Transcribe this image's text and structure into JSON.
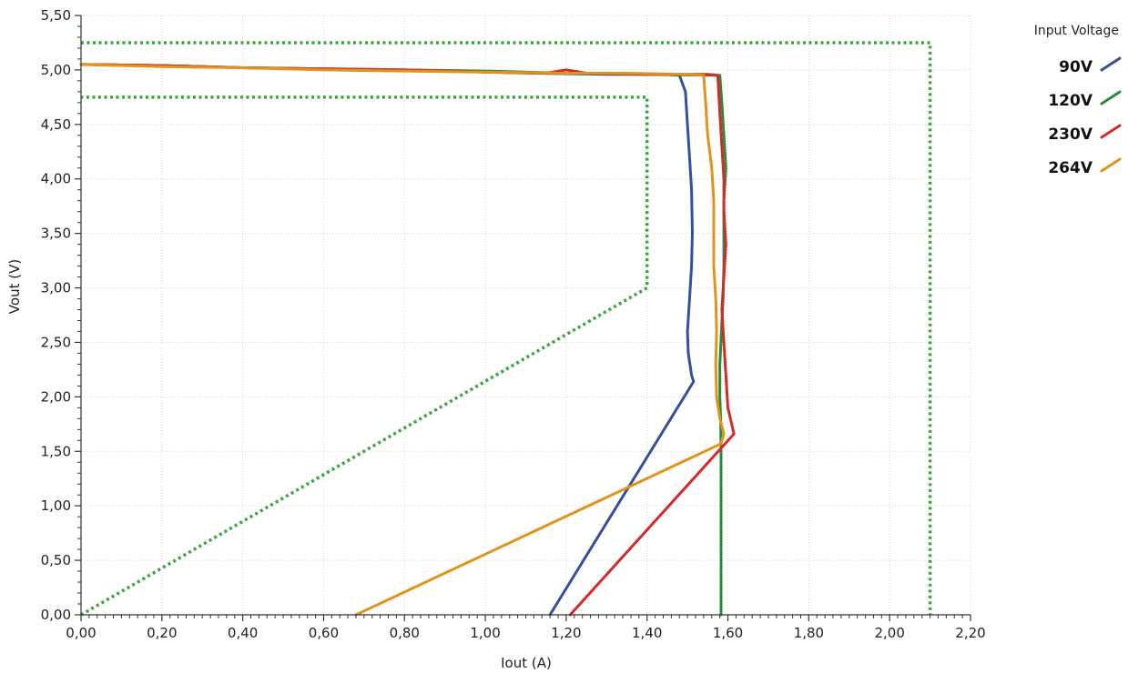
{
  "chart_data": {
    "type": "line",
    "xlabel": "Iout (A)",
    "ylabel": "Vout (V)",
    "xlim": [
      0,
      2.2
    ],
    "ylim": [
      0,
      5.5
    ],
    "x_ticks": [
      "0,00",
      "0,20",
      "0,40",
      "0,60",
      "0,80",
      "1,00",
      "1,20",
      "1,40",
      "1,60",
      "1,80",
      "2,00",
      "2,20"
    ],
    "y_ticks": [
      "0,00",
      "0,50",
      "1,00",
      "1,50",
      "2,00",
      "2,50",
      "3,00",
      "3,50",
      "4,00",
      "4,50",
      "5,00",
      "5,50"
    ],
    "grid": true,
    "legend": {
      "title": "Input Voltage",
      "position": "top-right"
    },
    "limits": [
      {
        "style": "dotted",
        "color": "#3aa63a",
        "points": [
          [
            0.0,
            0.0
          ],
          [
            1.4,
            3.0
          ],
          [
            1.4,
            4.75
          ],
          [
            0.0,
            4.75
          ]
        ]
      },
      {
        "style": "dotted",
        "color": "#3aa63a",
        "points": [
          [
            0.0,
            5.25
          ],
          [
            2.1,
            5.25
          ],
          [
            2.1,
            0.0
          ]
        ]
      }
    ],
    "series": [
      {
        "name": "90V",
        "color": "#34509a",
        "points": [
          [
            0.0,
            5.05
          ],
          [
            0.2,
            5.04
          ],
          [
            0.4,
            5.02
          ],
          [
            0.6,
            5.01
          ],
          [
            0.8,
            5.0
          ],
          [
            1.0,
            4.98
          ],
          [
            1.12,
            4.97
          ],
          [
            1.3,
            4.96
          ],
          [
            1.45,
            4.96
          ],
          [
            1.48,
            4.95
          ],
          [
            1.495,
            4.8
          ],
          [
            1.5,
            4.5
          ],
          [
            1.505,
            4.2
          ],
          [
            1.51,
            3.9
          ],
          [
            1.512,
            3.5
          ],
          [
            1.51,
            3.2
          ],
          [
            1.505,
            2.9
          ],
          [
            1.5,
            2.6
          ],
          [
            1.502,
            2.4
          ],
          [
            1.51,
            2.2
          ],
          [
            1.515,
            2.14
          ],
          [
            1.16,
            0.0
          ]
        ]
      },
      {
        "name": "120V",
        "color": "#2b8a3e",
        "points": [
          [
            0.0,
            5.05
          ],
          [
            0.2,
            5.04
          ],
          [
            0.4,
            5.02
          ],
          [
            0.6,
            5.01
          ],
          [
            0.8,
            5.0
          ],
          [
            1.0,
            4.99
          ],
          [
            1.2,
            4.97
          ],
          [
            1.4,
            4.96
          ],
          [
            1.58,
            4.95
          ],
          [
            1.585,
            4.7
          ],
          [
            1.59,
            4.4
          ],
          [
            1.595,
            4.1
          ],
          [
            1.59,
            3.8
          ],
          [
            1.59,
            3.5
          ],
          [
            1.59,
            3.2
          ],
          [
            1.588,
            2.9
          ],
          [
            1.584,
            2.6
          ],
          [
            1.58,
            2.3
          ],
          [
            1.58,
            2.0
          ],
          [
            1.582,
            1.8
          ],
          [
            1.583,
            1.5
          ],
          [
            1.583,
            1.0
          ],
          [
            1.583,
            0.5
          ],
          [
            1.583,
            0.0
          ]
        ]
      },
      {
        "name": "230V",
        "color": "#d42a2a",
        "points": [
          [
            0.0,
            5.05
          ],
          [
            0.2,
            5.04
          ],
          [
            0.4,
            5.02
          ],
          [
            0.6,
            5.01
          ],
          [
            0.8,
            5.0
          ],
          [
            1.0,
            4.98
          ],
          [
            1.15,
            4.97
          ],
          [
            1.2,
            5.0
          ],
          [
            1.25,
            4.97
          ],
          [
            1.4,
            4.96
          ],
          [
            1.55,
            4.96
          ],
          [
            1.575,
            4.95
          ],
          [
            1.58,
            4.6
          ],
          [
            1.585,
            4.3
          ],
          [
            1.59,
            4.0
          ],
          [
            1.59,
            3.7
          ],
          [
            1.595,
            3.4
          ],
          [
            1.59,
            3.1
          ],
          [
            1.585,
            2.8
          ],
          [
            1.59,
            2.5
          ],
          [
            1.595,
            2.2
          ],
          [
            1.6,
            1.9
          ],
          [
            1.615,
            1.66
          ],
          [
            1.21,
            0.0
          ]
        ]
      },
      {
        "name": "264V",
        "color": "#e0941c",
        "points": [
          [
            0.0,
            5.05
          ],
          [
            0.2,
            5.03
          ],
          [
            0.4,
            5.02
          ],
          [
            0.6,
            5.0
          ],
          [
            0.8,
            4.99
          ],
          [
            1.0,
            4.98
          ],
          [
            1.2,
            4.97
          ],
          [
            1.35,
            4.97
          ],
          [
            1.5,
            4.96
          ],
          [
            1.54,
            4.95
          ],
          [
            1.545,
            4.7
          ],
          [
            1.55,
            4.4
          ],
          [
            1.56,
            4.1
          ],
          [
            1.565,
            3.8
          ],
          [
            1.565,
            3.5
          ],
          [
            1.565,
            3.2
          ],
          [
            1.57,
            2.9
          ],
          [
            1.572,
            2.6
          ],
          [
            1.57,
            2.3
          ],
          [
            1.572,
            2.0
          ],
          [
            1.58,
            1.8
          ],
          [
            1.59,
            1.66
          ],
          [
            1.583,
            1.57
          ],
          [
            0.68,
            0.0
          ]
        ]
      }
    ]
  }
}
